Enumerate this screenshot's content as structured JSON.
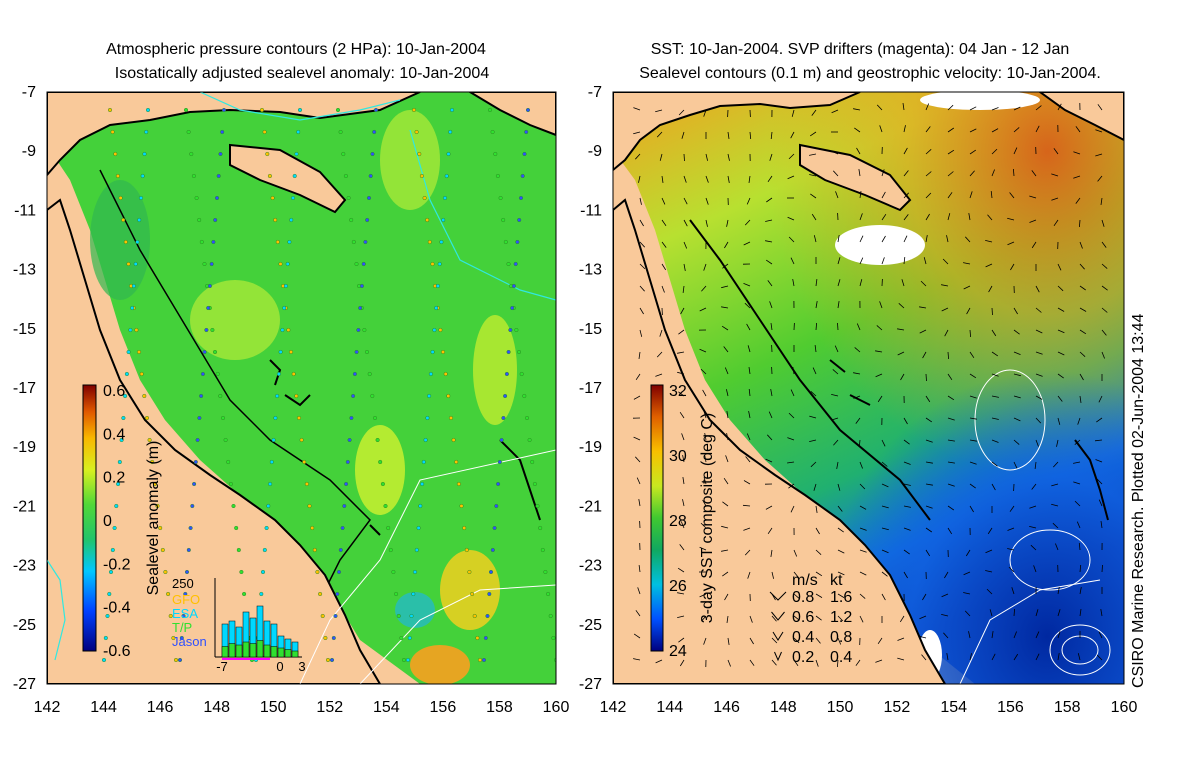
{
  "left_panel": {
    "title_line1": "Atmospheric pressure contours (2 HPa): 10-Jan-2004",
    "title_line2": "Isostatically adjusted sealevel anomaly: 10-Jan-2004",
    "colorbar": {
      "label": "Sealevel anomaly (m)",
      "ticks": [
        "0.6",
        "0.4",
        "0.2",
        "0",
        "-0.2",
        "-0.4",
        "-0.6"
      ]
    },
    "inset": {
      "ymax": "250",
      "legend": [
        "GFO",
        "ESA",
        "T/P",
        "Jason"
      ],
      "legend_colors": [
        "#ffc000",
        "#00d8ff",
        "#30e030",
        "#3050ff"
      ],
      "xticks": [
        "-7",
        "0",
        "3"
      ]
    }
  },
  "right_panel": {
    "title_line1": "SST: 10-Jan-2004. SVP drifters (magenta): 04 Jan - 12 Jan",
    "title_line2": "Sealevel contours (0.1 m) and geostrophic velocity: 10-Jan-2004.",
    "colorbar": {
      "label": "3-day SST composite (deg C)",
      "ticks": [
        "32",
        "30",
        "28",
        "26",
        "24"
      ]
    },
    "velocity_legend": {
      "header_ms": "m/s",
      "header_kt": "kt",
      "rows": [
        {
          "ms": "0.8",
          "kt": "1.6"
        },
        {
          "ms": "0.6",
          "kt": "1.2"
        },
        {
          "ms": "0.4",
          "kt": "0.8"
        },
        {
          "ms": "0.2",
          "kt": "0.4"
        }
      ]
    },
    "credit": "CSIRO Marine Research. Plotted 02-Jun-2004 13:44"
  },
  "axes": {
    "lat_ticks": [
      "-7",
      "-9",
      "-11",
      "-13",
      "-15",
      "-17",
      "-19",
      "-21",
      "-23",
      "-25",
      "-27"
    ],
    "lon_ticks": [
      "142",
      "144",
      "146",
      "148",
      "150",
      "152",
      "154",
      "156",
      "158",
      "160"
    ]
  },
  "colors": {
    "land": "#f9c99a",
    "ocean_anomaly": "#44d13a",
    "ocean_sst_warm": "#f2a020",
    "ocean_sst_cool": "#1560e0",
    "contour": "#ffffff",
    "pressure_contour": "#30e8e0",
    "drifter": "#ff00ff"
  }
}
